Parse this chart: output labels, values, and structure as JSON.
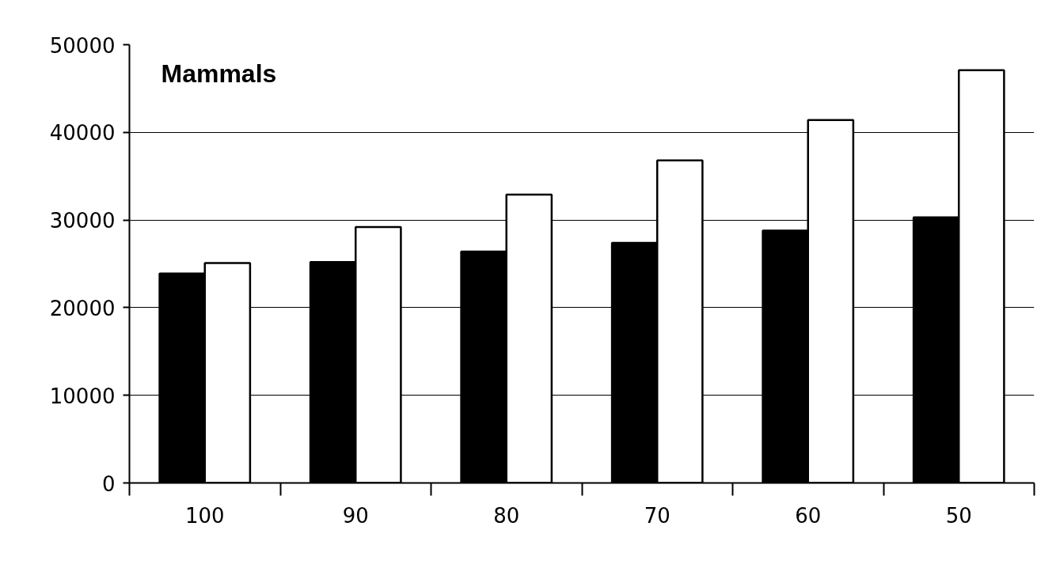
{
  "chart_data": {
    "type": "bar",
    "title": "Mammals",
    "categories": [
      "100",
      "90",
      "80",
      "70",
      "60",
      "50"
    ],
    "series": [
      {
        "color": "#000000",
        "values": [
          23900,
          25200,
          26400,
          27400,
          28800,
          30300
        ]
      },
      {
        "color": "#ffffff",
        "values": [
          25100,
          29200,
          32900,
          36800,
          41400,
          47100
        ]
      }
    ],
    "ylim": [
      0,
      50000
    ],
    "yticks": [
      0,
      10000,
      20000,
      30000,
      40000,
      50000
    ],
    "grid": "y"
  }
}
